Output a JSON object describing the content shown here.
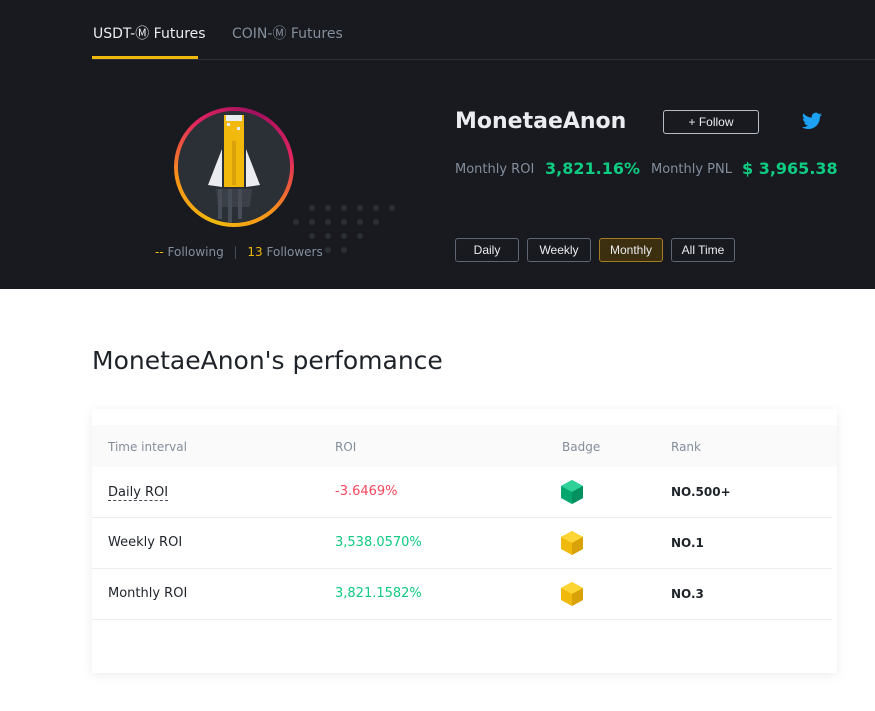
{
  "tabs": [
    {
      "label": "USDT-Ⓜ Futures",
      "active": true
    },
    {
      "label": "COIN-Ⓜ Futures",
      "active": false
    }
  ],
  "profile": {
    "name": "MonetaeAnon",
    "follow_label": "+ Follow",
    "following_count": "--",
    "following_label": "Following",
    "followers_count": "13",
    "followers_label": "Followers",
    "monthly_roi_label": "Monthly ROI",
    "monthly_roi_value": "3,821.16%",
    "monthly_pnl_label": "Monthly PNL",
    "monthly_pnl_value": "$ 3,965.38"
  },
  "periods": [
    {
      "label": "Daily",
      "active": false
    },
    {
      "label": "Weekly",
      "active": false
    },
    {
      "label": "Monthly",
      "active": true
    },
    {
      "label": "All Time",
      "active": false
    }
  ],
  "performance": {
    "title": "MonetaeAnon's perfomance",
    "columns": [
      "Time interval",
      "ROI",
      "Badge",
      "Rank"
    ],
    "rows": [
      {
        "interval": "Daily ROI",
        "roi": "-3.6469%",
        "badge": "green-hexagon-badge",
        "rank": "NO.500+"
      },
      {
        "interval": "Weekly ROI",
        "roi": "3,538.0570%",
        "badge": "gold-hexagon-badge",
        "rank": "NO.1"
      },
      {
        "interval": "Monthly ROI",
        "roi": "3,821.1582%",
        "badge": "gold-hexagon-badge",
        "rank": "NO.3"
      }
    ]
  },
  "colors": {
    "background_dark": "#181a20",
    "accent": "#f0b90b",
    "positive": "#0ecb81",
    "negative": "#f6465d"
  }
}
